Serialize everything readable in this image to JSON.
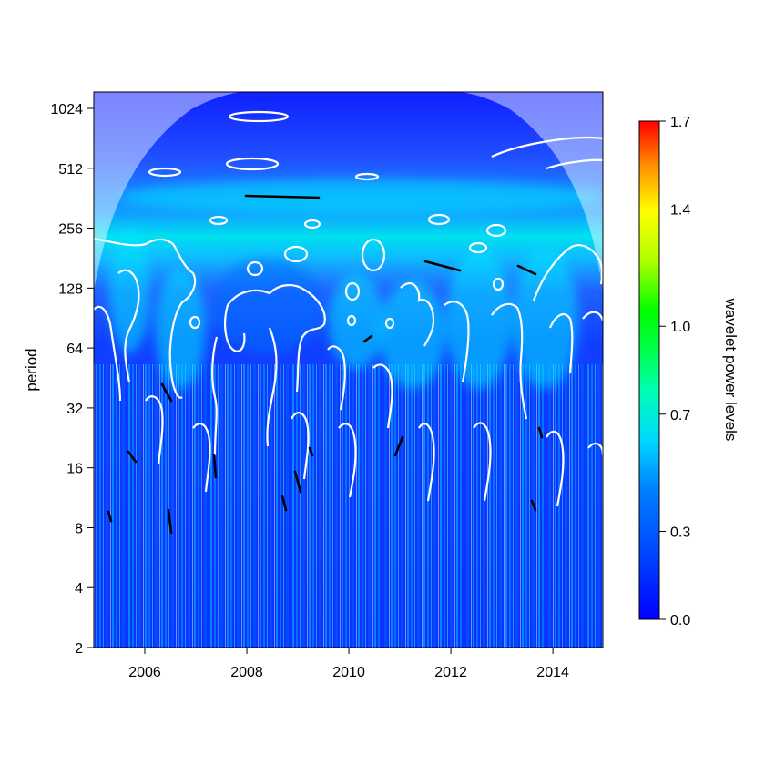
{
  "chart_data": {
    "type": "heatmap",
    "title": "",
    "xlabel": "",
    "ylabel": "period",
    "x_range": [
      2005.0,
      2014.98
    ],
    "x_ticks": [
      2006,
      2008,
      2010,
      2012,
      2014
    ],
    "y_scale": "log2",
    "y_range": [
      2,
      1400
    ],
    "y_ticks": [
      2,
      4,
      8,
      16,
      32,
      64,
      128,
      256,
      512,
      1024
    ],
    "colorbar": {
      "label": "wavelet power levels",
      "range": [
        0.0,
        1.7
      ],
      "ticks": [
        "0.0",
        "0.3",
        "0.7",
        "1.0",
        "1.4",
        "1.7"
      ],
      "palette": [
        "#0000ff",
        "#0070ff",
        "#00e5ff",
        "#00ff80",
        "#00ff00",
        "#c8ff00",
        "#ffff00",
        "#ff9000",
        "#ff0000"
      ]
    },
    "cone_of_influence": "shaded outside",
    "significance_contours": "white",
    "ridges": "black",
    "features": [
      {
        "x": [
          2005.3,
          2006.1
        ],
        "period": [
          60,
          256
        ],
        "level": 0.4
      },
      {
        "x": [
          2006.2,
          2007.2
        ],
        "period": [
          40,
          160
        ],
        "level": 0.35
      },
      {
        "x": [
          2007.3,
          2009.5
        ],
        "period": [
          60,
          180
        ],
        "level": 0.3
      },
      {
        "x": [
          2009.6,
          2010.7
        ],
        "period": [
          50,
          150
        ],
        "level": 0.4
      },
      {
        "x": [
          2010.6,
          2011.9
        ],
        "period": [
          40,
          140
        ],
        "level": 0.5
      },
      {
        "x": [
          2011.9,
          2013.2
        ],
        "period": [
          40,
          200
        ],
        "level": 0.35
      },
      {
        "x": [
          2013.2,
          2014.5
        ],
        "period": [
          40,
          200
        ],
        "level": 0.45
      },
      {
        "x": [
          2005.5,
          2015.0
        ],
        "period": [
          300,
          450
        ],
        "level": 0.5
      }
    ]
  }
}
